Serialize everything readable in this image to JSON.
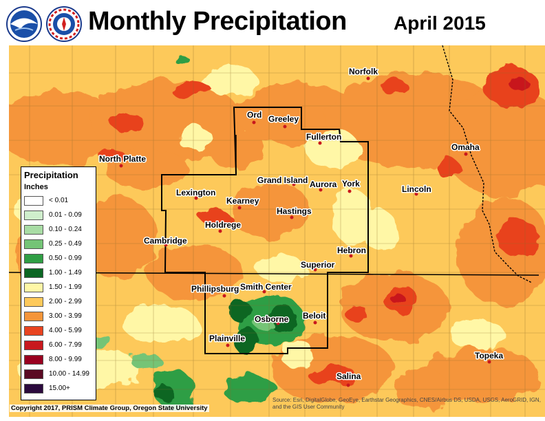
{
  "header": {
    "title": "Monthly Precipitation",
    "date": "April 2015",
    "logos": [
      "noaa-logo",
      "nws-logo"
    ]
  },
  "legend": {
    "title": "Precipitation",
    "units": "Inches",
    "items": [
      {
        "label": "< 0.01",
        "color": "#ffffff"
      },
      {
        "label": "0.01 - 0.09",
        "color": "#cfeecc"
      },
      {
        "label": "0.10 - 0.24",
        "color": "#a8dca4"
      },
      {
        "label": "0.25 - 0.49",
        "color": "#74c476"
      },
      {
        "label": "0.50 - 0.99",
        "color": "#2f9e44"
      },
      {
        "label": "1.00 - 1.49",
        "color": "#0b6623"
      },
      {
        "label": "1.50 - 1.99",
        "color": "#fff7a6"
      },
      {
        "label": "2.00 - 2.99",
        "color": "#fdc95a"
      },
      {
        "label": "3.00 - 3.99",
        "color": "#f5953a"
      },
      {
        "label": "4.00 - 5.99",
        "color": "#e8431f"
      },
      {
        "label": "6.00 - 7.99",
        "color": "#c8181d"
      },
      {
        "label": "8.00 - 9.99",
        "color": "#99001f"
      },
      {
        "label": "10.00 - 14.99",
        "color": "#5a0a22"
      },
      {
        "label": "15.00+",
        "color": "#2b0a3d"
      }
    ]
  },
  "cities": [
    {
      "name": "Ord"
    },
    {
      "name": "Greeley"
    },
    {
      "name": "Norfolk"
    },
    {
      "name": "Fullerton"
    },
    {
      "name": "North Platte"
    },
    {
      "name": "Omaha"
    },
    {
      "name": "Grand Island"
    },
    {
      "name": "Aurora"
    },
    {
      "name": "York"
    },
    {
      "name": "Lexington"
    },
    {
      "name": "Kearney"
    },
    {
      "name": "Lincoln"
    },
    {
      "name": "Hastings"
    },
    {
      "name": "Holdrege"
    },
    {
      "name": "Cambridge"
    },
    {
      "name": "Hebron"
    },
    {
      "name": "Superior"
    },
    {
      "name": "Phillipsburg"
    },
    {
      "name": "Smith Center"
    },
    {
      "name": "Beloit"
    },
    {
      "name": "Osborne"
    },
    {
      "name": "Plainville"
    },
    {
      "name": "Topeka"
    },
    {
      "name": "Salina"
    }
  ],
  "footer": {
    "copyright": "Copyright 2017, PRISM Climate Group, Oregon State University",
    "source": "Source: Esri, DigitalGlobe, GeoEye, Earthstar Geographics, CNES/Airbus DS, USDA, USGS, AeroGRID, IGN, and the GIS User Community"
  }
}
